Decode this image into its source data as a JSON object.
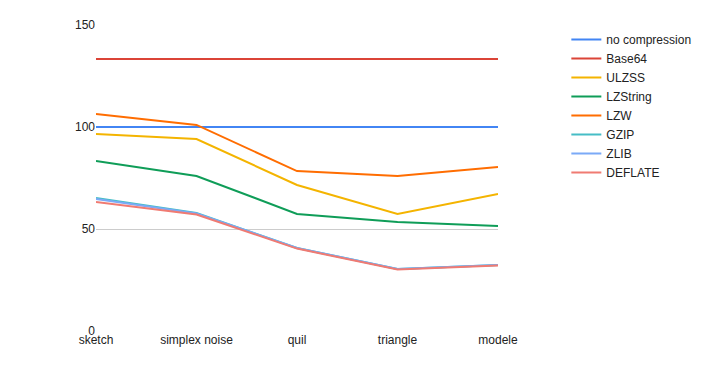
{
  "chart_data": {
    "type": "line",
    "categories": [
      "sketch",
      "simplex noise",
      "quil",
      "triangle",
      "modele"
    ],
    "series": [
      {
        "name": "no compression",
        "color": "#4285f4",
        "values": [
          100,
          100,
          100,
          100,
          100
        ]
      },
      {
        "name": "Base64",
        "color": "#db4437",
        "values": [
          133.3,
          133.3,
          133.3,
          133.3,
          133.3
        ]
      },
      {
        "name": "ULZSS",
        "color": "#f4b400",
        "values": [
          96.6,
          94.1,
          71.6,
          57.4,
          67.2
        ]
      },
      {
        "name": "LZString",
        "color": "#0f9d58",
        "values": [
          83.3,
          76.0,
          57.4,
          53.4,
          51.5
        ]
      },
      {
        "name": "LZW",
        "color": "#ff6d01",
        "values": [
          106.4,
          101.0,
          78.4,
          76.0,
          80.4
        ]
      },
      {
        "name": "GZIP",
        "color": "#46bdc6",
        "values": [
          65.2,
          57.8,
          40.7,
          30.4,
          32.4
        ]
      },
      {
        "name": "ZLIB",
        "color": "#7baaf7",
        "values": [
          64.7,
          57.6,
          40.7,
          30.4,
          32.4
        ]
      },
      {
        "name": "DEFLATE",
        "color": "#f07b72",
        "values": [
          63.2,
          57.1,
          40.4,
          30.1,
          32.1
        ]
      }
    ],
    "ylim": [
      0,
      150
    ],
    "yticks": [
      0,
      50,
      100,
      150
    ],
    "grid": true,
    "legend": "right"
  }
}
